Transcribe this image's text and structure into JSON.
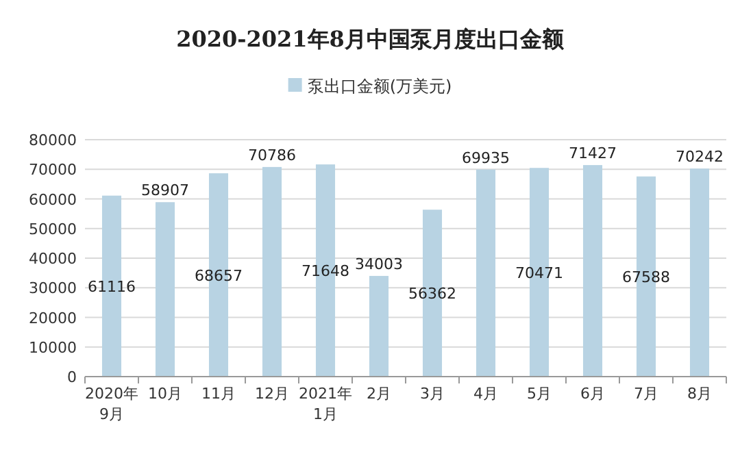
{
  "chart_data": {
    "type": "bar",
    "title": "2020-2021年8月中国泵月度出口金额",
    "categories": [
      "2020年\n9月",
      "10月",
      "11月",
      "12月",
      "2021年\n1月",
      "2月",
      "3月",
      "4月",
      "5月",
      "6月",
      "7月",
      "8月"
    ],
    "series": [
      {
        "name": "泵出口金额(万美元)",
        "color": "#b8d3e3",
        "values": [
          61116,
          58907,
          68657,
          70786,
          71648,
          34003,
          56362,
          69935,
          70471,
          71427,
          67588,
          70242
        ]
      }
    ],
    "ylim": [
      0,
      80000
    ],
    "yticks": [
      0,
      10000,
      20000,
      30000,
      40000,
      50000,
      60000,
      70000,
      80000
    ],
    "grid": "y",
    "legend": "top",
    "data_labels": true
  }
}
